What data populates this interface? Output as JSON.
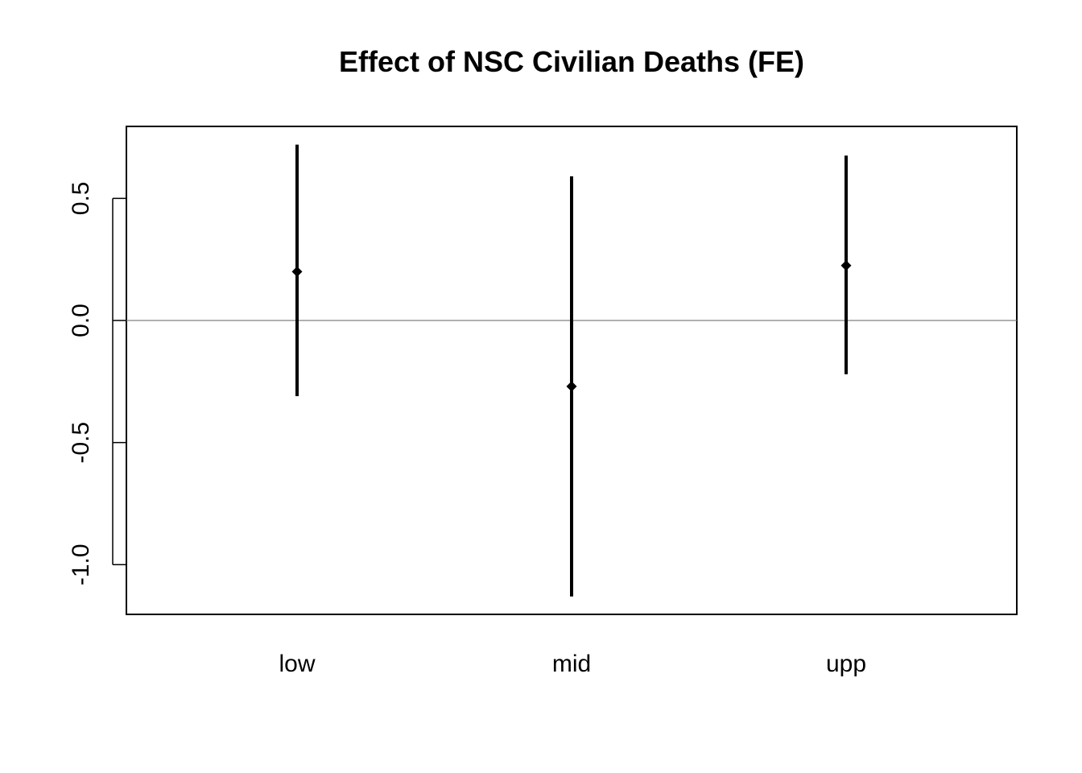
{
  "chart_data": {
    "type": "errorbar",
    "title": "Effect of NSC Civilian Deaths (FE)",
    "xlabel": "",
    "ylabel": "",
    "categories": [
      "low",
      "mid",
      "upp"
    ],
    "points": [
      {
        "category": "low",
        "estimate": 0.2,
        "lower": -0.31,
        "upper": 0.72
      },
      {
        "category": "mid",
        "estimate": -0.27,
        "lower": -1.13,
        "upper": 0.59
      },
      {
        "category": "upp",
        "estimate": 0.225,
        "lower": -0.22,
        "upper": 0.675
      }
    ],
    "yticks": [
      {
        "value": 0.5,
        "label": "0.5"
      },
      {
        "value": 0.0,
        "label": "0.0"
      },
      {
        "value": -0.5,
        "label": "-0.5"
      },
      {
        "value": -1.0,
        "label": "-1.0"
      }
    ],
    "ylim": [
      -1.2,
      0.8
    ],
    "reference_line": 0,
    "grid": false,
    "colors": {
      "bars": "#000000",
      "reference_line": "#808080",
      "frame": "#000000"
    }
  }
}
